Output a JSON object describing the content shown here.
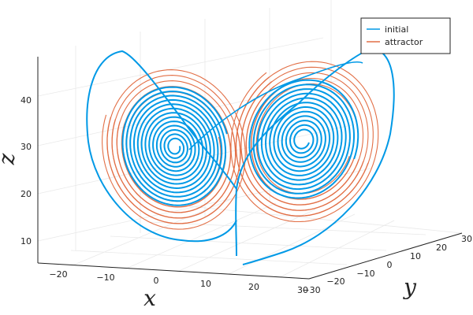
{
  "chart_data": {
    "type": "line",
    "projection": "3d",
    "title": "",
    "xlabel": "x",
    "ylabel": "y",
    "zlabel": "z",
    "xlim": [
      -25,
      30
    ],
    "ylim": [
      -30,
      30
    ],
    "zlim": [
      5,
      48
    ],
    "x_ticks": [
      "−20",
      "−10",
      "0",
      "10",
      "20",
      "30"
    ],
    "y_ticks": [
      "−30",
      "−20",
      "−10",
      "0",
      "10",
      "20",
      "30"
    ],
    "z_ticks": [
      "10",
      "20",
      "30",
      "40"
    ],
    "grid": true,
    "legend_position": "top-right",
    "series": [
      {
        "name": "initial",
        "color": "#0099e6"
      },
      {
        "name": "attractor",
        "color": "#e26f46"
      }
    ]
  }
}
